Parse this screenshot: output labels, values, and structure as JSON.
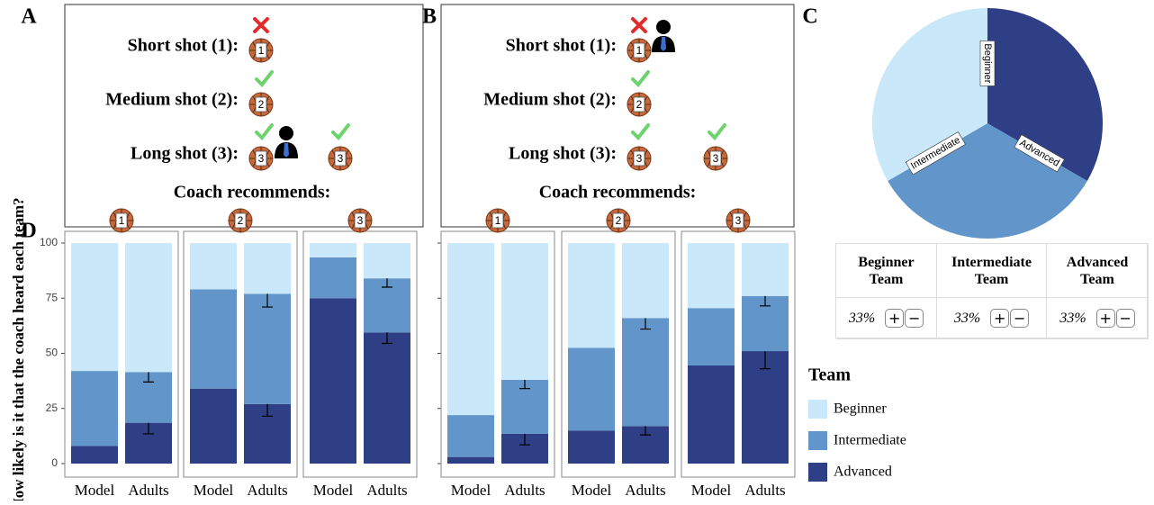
{
  "panels": [
    {
      "letter": "A",
      "shots": [
        {
          "label": "Short shot (1):",
          "balls": [
            "1"
          ]
        },
        {
          "label": "Medium shot (2):",
          "balls": [
            "2"
          ]
        },
        {
          "label": "Long shot (3):",
          "balls": [
            "3",
            "3"
          ]
        }
      ],
      "recommends": "Coach recommends:"
    },
    {
      "letter": "B",
      "shots": [
        {
          "label": "Short shot (1):",
          "balls": [
            "1"
          ]
        },
        {
          "label": "Medium shot (2):",
          "balls": [
            "2"
          ]
        },
        {
          "label": "Long shot (3):",
          "balls": [
            "3",
            "3"
          ]
        }
      ],
      "recommends": "Coach recommends:"
    }
  ],
  "table": {
    "columns": [
      "Beginner Team",
      "Intermediate Team",
      "Advanced Team"
    ],
    "values": [
      "33%",
      "33%",
      "33%"
    ],
    "buttons": [
      "+",
      "−"
    ]
  },
  "legend": {
    "title": "Team"
  },
  "chart_data": [
    {
      "type": "bar",
      "letter": "D",
      "stacked": true,
      "ylabel": "How likely is it that the coach heard each team?",
      "ylim": [
        0,
        100
      ],
      "yticks": [
        0,
        25,
        50,
        75,
        100
      ],
      "categories": [
        "Model",
        "Adults"
      ],
      "series": [
        {
          "name": "Beginner",
          "color": "#c9e9fa"
        },
        {
          "name": "Intermediate",
          "color": "#6295c9"
        },
        {
          "name": "Advanced",
          "color": "#2e3f86"
        }
      ],
      "facets": [
        {
          "title": "1",
          "values": [
            [
              58,
              58.5
            ],
            [
              34,
              23
            ],
            [
              8,
              18.5
            ]
          ],
          "errors": [
            [
              null,
              null
            ],
            [
              null,
              4.5
            ],
            [
              null,
              5
            ]
          ]
        },
        {
          "title": "2",
          "values": [
            [
              21,
              23
            ],
            [
              45,
              50
            ],
            [
              34,
              27
            ]
          ],
          "errors": [
            [
              null,
              null
            ],
            [
              null,
              6
            ],
            [
              null,
              5.5
            ]
          ]
        },
        {
          "title": "3",
          "values": [
            [
              6.5,
              16
            ],
            [
              18.5,
              24.5
            ],
            [
              75,
              59.5
            ]
          ],
          "errors": [
            [
              null,
              null
            ],
            [
              null,
              4
            ],
            [
              null,
              5
            ]
          ]
        },
        {
          "title": "1",
          "values": [
            [
              78,
              62
            ],
            [
              19,
              24.5
            ],
            [
              3,
              13.5
            ]
          ],
          "errors": [
            [
              null,
              null
            ],
            [
              null,
              4
            ],
            [
              null,
              5
            ]
          ]
        },
        {
          "title": "2",
          "values": [
            [
              47.5,
              34
            ],
            [
              37.5,
              49
            ],
            [
              15,
              17
            ]
          ],
          "errors": [
            [
              null,
              null
            ],
            [
              null,
              5
            ],
            [
              null,
              4
            ]
          ]
        },
        {
          "title": "3",
          "values": [
            [
              29.5,
              24
            ],
            [
              26,
              25
            ],
            [
              44.5,
              51
            ]
          ],
          "errors": [
            [
              null,
              null
            ],
            [
              null,
              4.5
            ],
            [
              null,
              8
            ]
          ]
        }
      ]
    },
    {
      "type": "pie",
      "letter": "C",
      "categories": [
        "Advanced",
        "Intermediate",
        "Beginner"
      ],
      "values": [
        33,
        33,
        33
      ],
      "colors": [
        "#2e3f86",
        "#6295c9",
        "#c9e9fa"
      ]
    }
  ]
}
